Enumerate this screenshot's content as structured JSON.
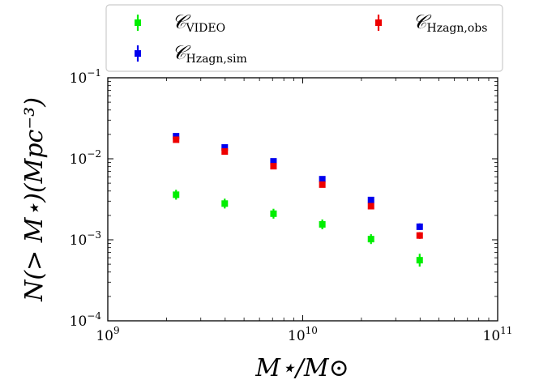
{
  "chart_data": {
    "type": "scatter",
    "title": "",
    "xlabel": "M⋆/M⊙",
    "ylabel": "N(> M⋆)(Mpc⁻³)",
    "xscale": "log",
    "yscale": "log",
    "xlim": [
      1000000000.0,
      100000000000.0
    ],
    "ylim": [
      0.0001,
      0.1
    ],
    "grid": false,
    "legend_placement": "top, above plot, two columns",
    "x_ticks": [
      {
        "base": "10",
        "exp": "9"
      },
      {
        "base": "10",
        "exp": "10"
      },
      {
        "base": "10",
        "exp": "11"
      }
    ],
    "y_ticks": [
      {
        "base": "10",
        "exp": "−4"
      },
      {
        "base": "10",
        "exp": "−3"
      },
      {
        "base": "10",
        "exp": "−2"
      },
      {
        "base": "10",
        "exp": "−1"
      }
    ],
    "series": [
      {
        "name": "C_VIDEO",
        "legend_symbol": "𝒞",
        "legend_subscript": "VIDEO",
        "color": "#00ee00",
        "x": [
          2240000000.0,
          3980000000.0,
          7080000000.0,
          12600000000.0,
          22400000000.0,
          39800000000.0
        ],
        "y": [
          0.0036,
          0.0028,
          0.0021,
          0.00155,
          0.00102,
          0.00056
        ],
        "yerr_factor": [
          1.15,
          1.15,
          1.15,
          1.15,
          1.15,
          1.2
        ]
      },
      {
        "name": "C_Hzagn,sim",
        "legend_symbol": "𝒞",
        "legend_subscript": "Hzagn,sim",
        "color": "#0000ee",
        "x": [
          2240000000.0,
          3980000000.0,
          7080000000.0,
          12600000000.0,
          22400000000.0,
          39800000000.0
        ],
        "y": [
          0.019,
          0.0138,
          0.0093,
          0.0056,
          0.0031,
          0.00145
        ],
        "yerr_factor": [
          1.06,
          1.06,
          1.06,
          1.07,
          1.08,
          1.1
        ]
      },
      {
        "name": "C_Hzagn,obs",
        "legend_symbol": "𝒞",
        "legend_subscript": "Hzagn,obs",
        "color": "#ee0000",
        "x": [
          2240000000.0,
          3980000000.0,
          7080000000.0,
          12600000000.0,
          22400000000.0,
          39800000000.0
        ],
        "y": [
          0.0172,
          0.0123,
          0.0081,
          0.0048,
          0.0026,
          0.00113
        ],
        "yerr_factor": [
          1.06,
          1.06,
          1.06,
          1.07,
          1.08,
          1.1
        ]
      }
    ]
  },
  "legend": {
    "entries": [
      {
        "symbol": "𝒞",
        "subscript": "VIDEO",
        "color": "#00ee00"
      },
      {
        "symbol": "𝒞",
        "subscript": "Hzagn,obs",
        "color": "#ee0000"
      },
      {
        "symbol": "𝒞",
        "subscript": "Hzagn,sim",
        "color": "#0000ee"
      }
    ]
  }
}
